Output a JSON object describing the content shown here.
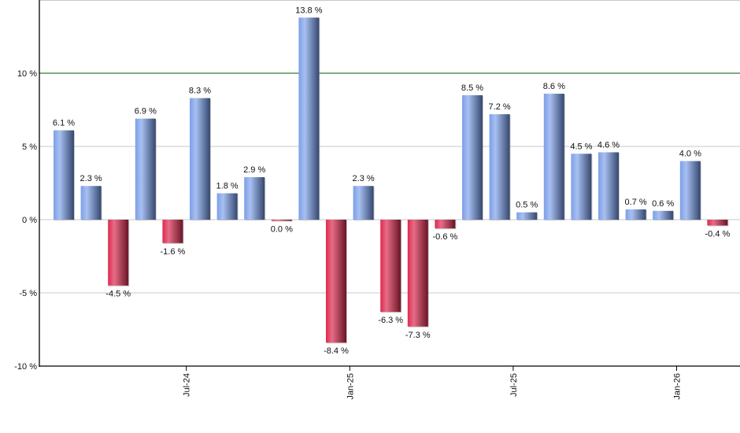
{
  "chart_data": {
    "type": "bar",
    "title": "",
    "xlabel": "",
    "ylabel": "",
    "ylim": [
      -10,
      15
    ],
    "yticks": [
      {
        "value": 10,
        "label": "10 %"
      },
      {
        "value": 5,
        "label": "5 %"
      },
      {
        "value": 0,
        "label": "0 %"
      },
      {
        "value": -5,
        "label": "-5 %"
      },
      {
        "value": -10,
        "label": "-10 %"
      }
    ],
    "xticks": [
      {
        "index": 5,
        "label": "Jul-24"
      },
      {
        "index": 11,
        "label": "Jan-25"
      },
      {
        "index": 17,
        "label": "Jul-25"
      },
      {
        "index": 23,
        "label": "Jan-26"
      }
    ],
    "reference_line": {
      "value": 10,
      "color": "#2e7d32"
    },
    "grid": true,
    "legend": null,
    "colors": {
      "positive": "#6f8fd6",
      "negative": "#c8344f"
    },
    "values": [
      6.1,
      2.3,
      -4.5,
      6.9,
      -1.6,
      8.3,
      1.8,
      2.9,
      0.0,
      13.8,
      -8.4,
      2.3,
      -6.3,
      -7.3,
      -0.6,
      8.5,
      7.2,
      0.5,
      8.6,
      4.5,
      4.6,
      0.7,
      0.6,
      4.0,
      -0.4
    ],
    "labels": [
      "6.1 %",
      "2.3 %",
      "-4.5 %",
      "6.9 %",
      "-1.6 %",
      "8.3 %",
      "1.8 %",
      "2.9 %",
      "0.0 %",
      "13.8 %",
      "-8.4 %",
      "2.3 %",
      "-6.3 %",
      "-7.3 %",
      "-0.6 %",
      "8.5 %",
      "7.2 %",
      "0.5 %",
      "8.6 %",
      "4.5 %",
      "4.6 %",
      "0.7 %",
      "0.6 %",
      "4.0 %",
      "-0.4 %"
    ]
  }
}
